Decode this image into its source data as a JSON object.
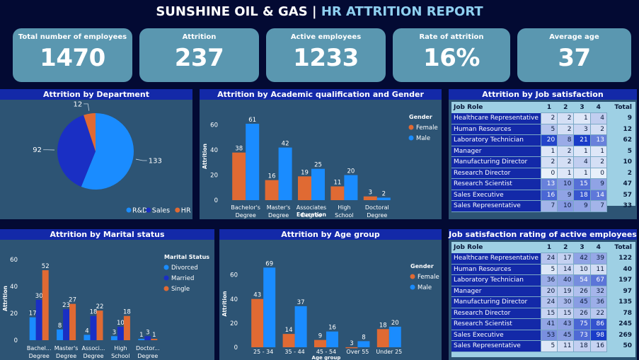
{
  "header": {
    "title_main": "SUNSHINE OIL & GAS",
    "separator": "|",
    "title_sub": "HR ATTRITION REPORT"
  },
  "kpis": [
    {
      "label": "Total number of employees",
      "value": "1470"
    },
    {
      "label": "Attrition",
      "value": "237"
    },
    {
      "label": "Active employees",
      "value": "1233"
    },
    {
      "label": "Rate of attrition",
      "value": "16%"
    },
    {
      "label": "Average age",
      "value": "37"
    }
  ],
  "colors": {
    "female": "#e06a33",
    "male": "#1a8cff",
    "married": "#1a2fc4",
    "rd": "#1a8cff",
    "sales": "#1a2fc4",
    "hr": "#e06a33"
  },
  "panels": {
    "department": "Attrition by Department",
    "education": "Attrition by Academic qualification and Gender",
    "jobsat": "Attrition by Job satisfaction",
    "marital": "Attrition by Marital status",
    "age": "Attrition by Age group",
    "active": "Job satisfaction rating of active employees"
  },
  "chart_data": [
    {
      "type": "pie",
      "title": "Attrition by Department",
      "categories": [
        "R&D",
        "Sales",
        "HR"
      ],
      "values": [
        133,
        92,
        12
      ],
      "legend": "bottom-right"
    },
    {
      "type": "bar",
      "title": "Attrition by Academic qualification and Gender",
      "categories": [
        "Bachelor's Degree",
        "Master's Degree",
        "Associates Degree",
        "High School",
        "Doctoral Degree"
      ],
      "xlabel": "Education",
      "ylabel": "Attrition",
      "legend_title": "Gender",
      "ylim": [
        0,
        70
      ],
      "yticks": [
        0,
        20,
        40,
        60
      ],
      "series": [
        {
          "name": "Female",
          "values": [
            38,
            16,
            19,
            11,
            3
          ]
        },
        {
          "name": "Male",
          "values": [
            61,
            42,
            25,
            20,
            2
          ]
        }
      ]
    },
    {
      "type": "bar",
      "title": "Attrition by Marital status",
      "categories": [
        "Bachel... Degree",
        "Master's Degree",
        "Associ... Degree",
        "High School",
        "Doctor... Degree"
      ],
      "xlabel": "Education",
      "ylabel": "Attrition",
      "legend_title": "Marital Status",
      "ylim": [
        0,
        62
      ],
      "yticks": [
        0,
        20,
        40,
        60
      ],
      "series": [
        {
          "name": "Divorced",
          "values": [
            17,
            8,
            4,
            3,
            1
          ]
        },
        {
          "name": "Married",
          "values": [
            30,
            23,
            18,
            10,
            3
          ]
        },
        {
          "name": "Single",
          "values": [
            52,
            27,
            22,
            18,
            1
          ]
        }
      ]
    },
    {
      "type": "bar",
      "title": "Attrition by Age group",
      "categories": [
        "25 - 34",
        "35 - 44",
        "45 - 54",
        "Over 55",
        "Under 25"
      ],
      "xlabel": "Age group",
      "ylabel": "Attrition",
      "legend_title": "Gender",
      "ylim": [
        0,
        78
      ],
      "yticks": [
        0,
        20,
        40,
        60
      ],
      "series": [
        {
          "name": "Female",
          "values": [
            43,
            14,
            9,
            3,
            18
          ]
        },
        {
          "name": "Male",
          "values": [
            69,
            37,
            16,
            8,
            20
          ]
        }
      ]
    }
  ],
  "matrix_headers": [
    "Job Role",
    "1",
    "2",
    "3",
    "4",
    "Total"
  ],
  "jobsat_rows": [
    {
      "role": "Healthcare Representative",
      "v": [
        2,
        2,
        1,
        4
      ],
      "total": 9
    },
    {
      "role": "Human Resources",
      "v": [
        5,
        2,
        3,
        2
      ],
      "total": 12
    },
    {
      "role": "Laboratory Technician",
      "v": [
        20,
        8,
        21,
        13
      ],
      "total": 62
    },
    {
      "role": "Manager",
      "v": [
        1,
        2,
        1,
        1
      ],
      "total": 5
    },
    {
      "role": "Manufacturing Director",
      "v": [
        2,
        2,
        4,
        2
      ],
      "total": 10
    },
    {
      "role": "Research Director",
      "v": [
        0,
        1,
        1,
        0
      ],
      "total": 2
    },
    {
      "role": "Research Scientist",
      "v": [
        13,
        10,
        15,
        9
      ],
      "total": 47
    },
    {
      "role": "Sales Executive",
      "v": [
        16,
        9,
        18,
        14
      ],
      "total": 57
    },
    {
      "role": "Sales Representative",
      "v": [
        7,
        10,
        9,
        7
      ],
      "total": 33
    }
  ],
  "active_rows": [
    {
      "role": "Healthcare Representative",
      "v": [
        24,
        17,
        42,
        39
      ],
      "total": 122
    },
    {
      "role": "Human Resources",
      "v": [
        5,
        14,
        10,
        11
      ],
      "total": 40
    },
    {
      "role": "Laboratory Technician",
      "v": [
        36,
        40,
        54,
        67
      ],
      "total": 197
    },
    {
      "role": "Manager",
      "v": [
        20,
        19,
        26,
        32
      ],
      "total": 97
    },
    {
      "role": "Manufacturing Director",
      "v": [
        24,
        30,
        45,
        36
      ],
      "total": 135
    },
    {
      "role": "Research Director",
      "v": [
        15,
        15,
        26,
        22
      ],
      "total": 78
    },
    {
      "role": "Research Scientist",
      "v": [
        41,
        43,
        75,
        86
      ],
      "total": 245
    },
    {
      "role": "Sales Executive",
      "v": [
        53,
        45,
        73,
        98
      ],
      "total": 269
    },
    {
      "role": "Sales Representative",
      "v": [
        5,
        11,
        18,
        16
      ],
      "total": 50
    }
  ]
}
